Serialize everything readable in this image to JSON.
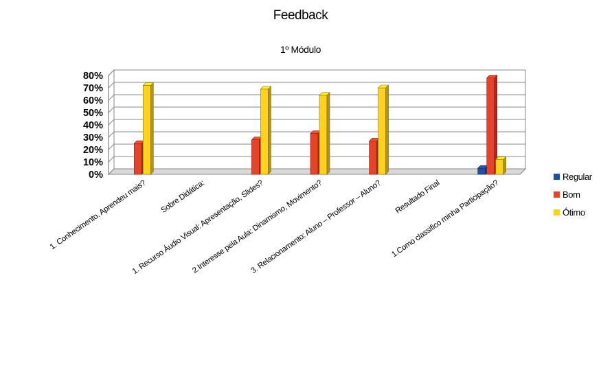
{
  "chart_data": {
    "type": "bar",
    "title": "Feedback",
    "subtitle": "1º Módulo",
    "categories": [
      "1. Conhecimento. Aprendeu mais?",
      "Sobre Didática:",
      "1. Recurso Áudio Visual: Apresentação, Slides?",
      "2.Interesse pela Aula: Dinamismo, Movimento?",
      "3. Relacionamento: Aluno – Professor – Aluno?",
      "Resultado Final",
      "1.Como classifico minha Participação?"
    ],
    "series": [
      {
        "name": "Regular",
        "color": "#1f4fa0",
        "values": [
          0,
          0,
          0,
          0,
          0,
          0,
          5
        ]
      },
      {
        "name": "Bom",
        "color": "#e8432a",
        "values": [
          25,
          0,
          28,
          33,
          27,
          0,
          78
        ]
      },
      {
        "name": "Ótimo",
        "color": "#ffd21f",
        "values": [
          72,
          0,
          69,
          64,
          70,
          0,
          12
        ]
      }
    ],
    "yticks": [
      "0%",
      "10%",
      "20%",
      "30%",
      "40%",
      "50%",
      "60%",
      "70%",
      "80%"
    ],
    "ylim": [
      0,
      80
    ],
    "grid": true,
    "legend": "right"
  }
}
